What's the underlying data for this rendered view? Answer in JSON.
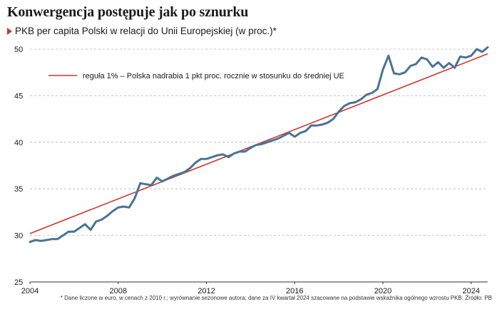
{
  "header": {
    "title": "Konwergencja postępuje jak po sznurku",
    "subtitle": "PKB per capita Polski w relacji do Unii Europejskiej (w proc.)*"
  },
  "footnote": "* Dane liczone w euro, w cenach z 2010 r.; wyrównanie sezonowe autora; dane za IV kwartał 2024 szacowane na podstawie wskaźnika ogólnego wzrostu PKB. Źródło: PB",
  "colors": {
    "series": "#4a7396",
    "trend": "#d0342c",
    "grid": "#b5b5b5"
  },
  "chart_data": {
    "type": "line",
    "title": "Konwergencja postępuje jak po sznurku",
    "subtitle": "PKB per capita Polski w relacji do Unii Europejskiej (w proc.)*",
    "xlim": [
      2004,
      2024.75
    ],
    "ylim": [
      25,
      51
    ],
    "y_ticks": [
      25,
      30,
      35,
      40,
      45,
      50
    ],
    "x_ticks": [
      2004,
      2008,
      2012,
      2016,
      2020,
      2024
    ],
    "grid": "horizontal dashed",
    "legend": {
      "placement": "top-left",
      "label": "reguła 1% – Polska nadrabia 1 pkt proc. rocznie w stosunku do średniej UE"
    },
    "trend_line": {
      "name": "reguła 1% – Polska nadrabia 1 pkt proc. rocznie w stosunku do średniej UE",
      "x": [
        2004,
        2024.75
      ],
      "y": [
        30.2,
        49.5
      ]
    },
    "series": [
      {
        "x": [
          2004,
          2004.25,
          2004.5,
          2004.75,
          2005,
          2005.25,
          2005.5,
          2005.75,
          2006,
          2006.25,
          2006.5,
          2006.75,
          2007,
          2007.25,
          2007.5,
          2007.75,
          2008,
          2008.25,
          2008.5,
          2008.75,
          2009,
          2009.25,
          2009.5,
          2009.75,
          2010,
          2010.25,
          2010.5,
          2010.75,
          2011,
          2011.25,
          2011.5,
          2011.75,
          2012,
          2012.25,
          2012.5,
          2012.75,
          2013,
          2013.25,
          2013.5,
          2013.75,
          2014,
          2014.25,
          2014.5,
          2014.75,
          2015,
          2015.25,
          2015.5,
          2015.75,
          2016,
          2016.25,
          2016.5,
          2016.75,
          2017,
          2017.25,
          2017.5,
          2017.75,
          2018,
          2018.25,
          2018.5,
          2018.75,
          2019,
          2019.25,
          2019.5,
          2019.75,
          2020,
          2020.25,
          2020.5,
          2020.75,
          2021,
          2021.25,
          2021.5,
          2021.75,
          2022,
          2022.25,
          2022.5,
          2022.75,
          2023,
          2023.25,
          2023.5,
          2023.75,
          2024,
          2024.25,
          2024.5,
          2024.75
        ],
        "values": [
          29.3,
          29.5,
          29.4,
          29.5,
          29.6,
          29.6,
          30.0,
          30.4,
          30.4,
          30.8,
          31.2,
          30.6,
          31.5,
          31.7,
          32.1,
          32.6,
          33.0,
          33.1,
          33.0,
          34.0,
          35.6,
          35.5,
          35.4,
          36.2,
          35.8,
          36.1,
          36.4,
          36.6,
          36.8,
          37.2,
          37.8,
          38.2,
          38.2,
          38.4,
          38.6,
          38.7,
          38.4,
          38.8,
          39.0,
          39.0,
          39.4,
          39.7,
          39.8,
          40.0,
          40.2,
          40.4,
          40.7,
          41.0,
          40.6,
          41.0,
          41.2,
          41.8,
          41.8,
          41.9,
          42.1,
          42.5,
          43.3,
          43.9,
          44.2,
          44.3,
          44.6,
          45.1,
          45.3,
          45.7,
          47.8,
          49.3,
          47.4,
          47.3,
          47.5,
          48.2,
          48.4,
          49.1,
          48.9,
          48.1,
          48.6,
          48.0,
          48.5,
          48.0,
          49.2,
          49.1,
          49.3,
          50.0,
          49.7,
          50.2
        ]
      }
    ]
  }
}
